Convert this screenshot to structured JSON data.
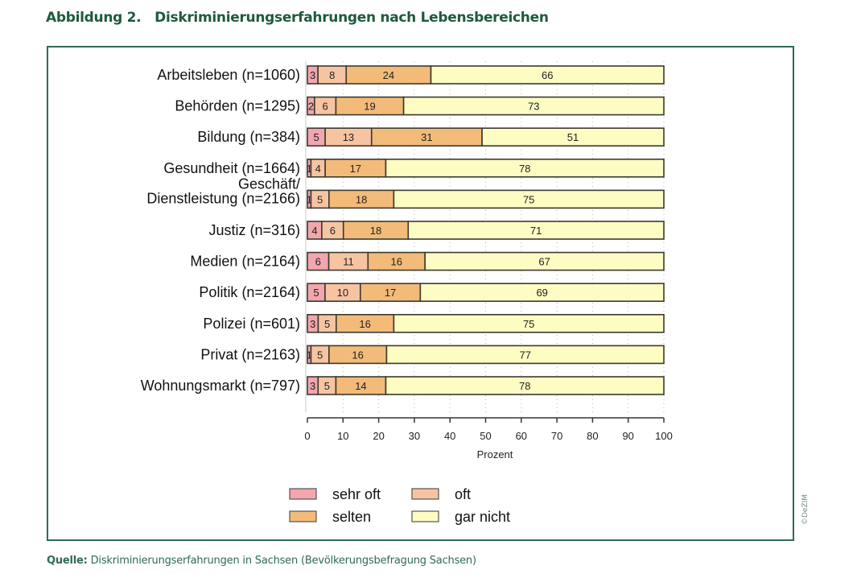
{
  "figure": {
    "number_label": "Abbildung 2.",
    "title": "Diskriminierungserfahrungen nach Lebensbereichen",
    "source_label": "Quelle:",
    "source_text": "Diskriminierungserfahrungen in Sachsen (Bevölkerungsbefragung Sachsen)",
    "copyright": "©DeZIM"
  },
  "chart_data": {
    "type": "bar",
    "orientation": "horizontal",
    "stacked": true,
    "title": "Abbildung 2.   Diskriminierungserfahrungen nach Lebensbereichen",
    "xlabel": "Prozent",
    "ylabel": "",
    "xlim": [
      0,
      100
    ],
    "xticks": [
      0,
      10,
      20,
      30,
      40,
      50,
      60,
      70,
      80,
      90,
      100
    ],
    "grid": "vertical dotted",
    "legend_position": "bottom",
    "categories": [
      [
        "Arbeitsleben (n=1060)"
      ],
      [
        "Behörden (n=1295)"
      ],
      [
        "Bildung (n=384)"
      ],
      [
        "Gesundheit (n=1664)"
      ],
      [
        "Geschäft/",
        "Dienstleistung (n=2166)"
      ],
      [
        "Justiz (n=316)"
      ],
      [
        "Medien (n=2164)"
      ],
      [
        "Politik (n=2164)"
      ],
      [
        "Polizei (n=601)"
      ],
      [
        "Privat (n=2163)"
      ],
      [
        "Wohnungsmarkt (n=797)"
      ]
    ],
    "series": [
      {
        "name": "sehr oft",
        "color": "#f2a6ad",
        "values": [
          3,
          2,
          5,
          1,
          1,
          4,
          6,
          5,
          3,
          1,
          3
        ]
      },
      {
        "name": "oft",
        "color": "#f7c4a2",
        "values": [
          8,
          6,
          13,
          4,
          5,
          6,
          11,
          10,
          5,
          5,
          5
        ]
      },
      {
        "name": "selten",
        "color": "#f3bb79",
        "values": [
          24,
          19,
          31,
          17,
          18,
          18,
          16,
          17,
          16,
          16,
          14
        ]
      },
      {
        "name": "gar nicht",
        "color": "#fdfcc3",
        "values": [
          66,
          73,
          51,
          78,
          75,
          71,
          67,
          69,
          75,
          77,
          78
        ]
      }
    ],
    "legend_order": [
      "sehr oft",
      "oft",
      "selten",
      "gar nicht"
    ]
  }
}
